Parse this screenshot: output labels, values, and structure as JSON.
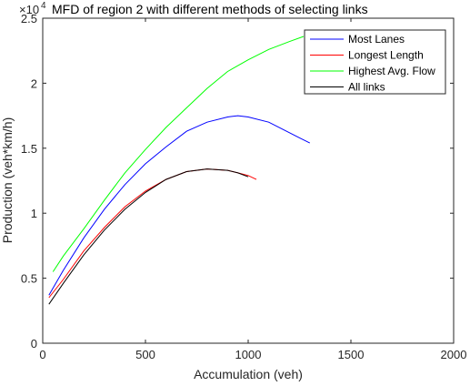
{
  "chart_data": {
    "type": "line",
    "title": "MFD of region 2 with different methods of selecting links",
    "exponent_label": "×10",
    "exponent_value": "4",
    "xlabel": "Accumulation (veh)",
    "ylabel": "Production (veh*km/h)",
    "xlim": [
      0,
      2000
    ],
    "ylim": [
      0,
      25000
    ],
    "x_ticks": [
      0,
      500,
      1000,
      1500,
      2000
    ],
    "x_tick_labels": [
      "0",
      "500",
      "1000",
      "1500",
      "2000"
    ],
    "y_ticks": [
      0,
      5000,
      10000,
      15000,
      20000,
      25000
    ],
    "y_tick_labels": [
      "0",
      "0.5",
      "1",
      "1.5",
      "2",
      "2.5"
    ],
    "grid": false,
    "legend_position": "top-right",
    "series": [
      {
        "name": "Most Lanes",
        "color": "#0000ff",
        "x": [
          30,
          100,
          200,
          300,
          400,
          500,
          600,
          700,
          800,
          900,
          950,
          1000,
          1100,
          1200,
          1250,
          1300
        ],
        "y": [
          3700,
          5600,
          8100,
          10300,
          12200,
          13800,
          15100,
          16300,
          17000,
          17400,
          17500,
          17400,
          17000,
          16200,
          15800,
          15400
        ]
      },
      {
        "name": "Longest Length",
        "color": "#ff0000",
        "x": [
          30,
          100,
          200,
          300,
          400,
          500,
          600,
          700,
          800,
          900,
          950,
          1000,
          1040
        ],
        "y": [
          3500,
          4900,
          7100,
          8900,
          10500,
          11700,
          12600,
          13200,
          13400,
          13300,
          13100,
          12900,
          12600
        ]
      },
      {
        "name": "Highest Avg. Flow",
        "color": "#00ff00",
        "x": [
          50,
          100,
          200,
          300,
          400,
          500,
          600,
          700,
          800,
          900,
          1000,
          1100,
          1200,
          1270
        ],
        "y": [
          5500,
          6700,
          8800,
          11000,
          13100,
          14900,
          16600,
          18100,
          19600,
          20900,
          21800,
          22600,
          23200,
          23600
        ]
      },
      {
        "name": "All links",
        "color": "#000000",
        "x": [
          30,
          100,
          200,
          300,
          400,
          500,
          600,
          700,
          800,
          900,
          950,
          1000
        ],
        "y": [
          3000,
          4600,
          6800,
          8700,
          10300,
          11600,
          12600,
          13200,
          13400,
          13300,
          13100,
          12800
        ]
      }
    ]
  }
}
